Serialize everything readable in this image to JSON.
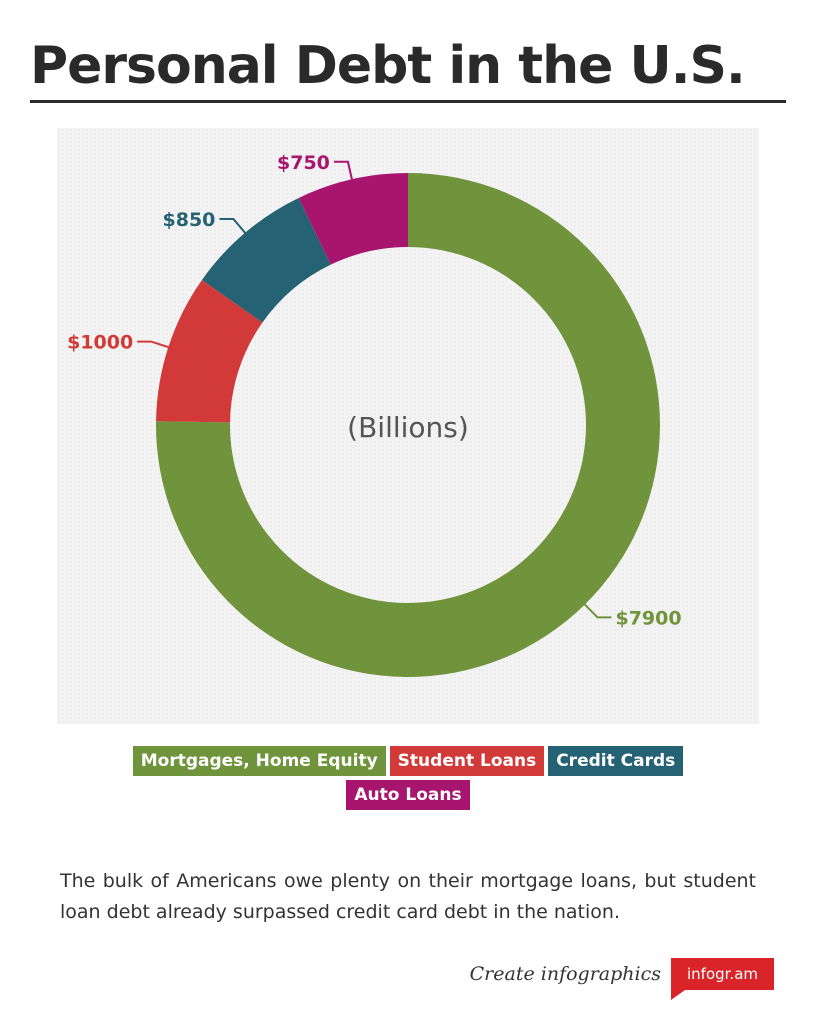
{
  "title": "Personal Debt in the U.S.",
  "chart_data": {
    "type": "pie",
    "center_label": "(Billions)",
    "categories": [
      "Mortgages, Home Equity",
      "Student Loans",
      "Credit Cards",
      "Auto Loans"
    ],
    "values": [
      7900,
      1000,
      850,
      750
    ],
    "data_labels": [
      "$7900",
      "$1000",
      "$850",
      "$750"
    ],
    "colors": [
      "#6f943b",
      "#d23a39",
      "#256374",
      "#a8156f"
    ],
    "legend_position": "bottom",
    "grid": false
  },
  "legend": {
    "items": [
      {
        "label": "Mortgages, Home Equity",
        "color": "#6f943b"
      },
      {
        "label": "Student Loans",
        "color": "#d23a39"
      },
      {
        "label": "Credit Cards",
        "color": "#256374"
      },
      {
        "label": "Auto Loans",
        "color": "#a8156f"
      }
    ]
  },
  "caption": "The bulk of Americans owe plenty on their mortgage loans, but student loan debt already surpassed credit card debt in the nation.",
  "footer": {
    "credit_text": "Create infographics",
    "brand": "infogr.am"
  }
}
